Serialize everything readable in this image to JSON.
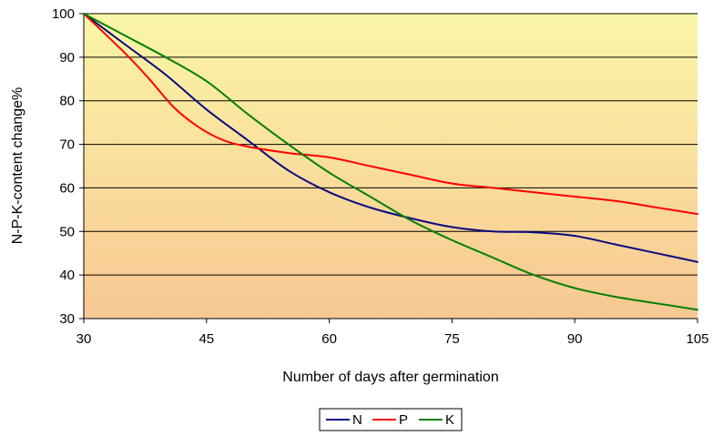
{
  "chart_data": {
    "type": "line",
    "title": "",
    "xlabel": "Number of days after germination",
    "ylabel": "N-P-K-content change%",
    "xlim": [
      30,
      105
    ],
    "ylim": [
      30,
      100
    ],
    "xticks": [
      30,
      45,
      60,
      75,
      90,
      105
    ],
    "yticks": [
      30,
      40,
      50,
      60,
      70,
      80,
      90,
      100
    ],
    "grid": "horizontal",
    "legend_position": "bottom-center",
    "background": {
      "top": "#fbf6a6",
      "bottom": "#f7c793"
    },
    "series": [
      {
        "name": "N",
        "color": "#0a0a80",
        "x": [
          30,
          35,
          40,
          45,
          50,
          55,
          60,
          65,
          70,
          75,
          80,
          85,
          90,
          95,
          100,
          105
        ],
        "y": [
          100,
          93,
          86,
          78,
          71,
          64,
          59,
          55.5,
          53,
          51,
          50,
          49.8,
          49,
          47,
          45,
          43
        ]
      },
      {
        "name": "P",
        "color": "#ff0000",
        "x": [
          30,
          35,
          38,
          41,
          44,
          47,
          50,
          55,
          60,
          65,
          70,
          75,
          80,
          85,
          90,
          95,
          100,
          105
        ],
        "y": [
          100,
          91,
          85,
          78.5,
          74,
          71,
          69.5,
          68,
          67,
          65,
          63,
          61,
          60,
          59,
          58,
          57,
          55.5,
          54
        ]
      },
      {
        "name": "K",
        "color": "#008000",
        "x": [
          30,
          35,
          40,
          45,
          50,
          55,
          60,
          65,
          70,
          75,
          80,
          85,
          90,
          95,
          100,
          105
        ],
        "y": [
          100,
          95,
          90,
          84.5,
          77,
          70,
          63.5,
          58,
          52.5,
          48,
          44,
          40,
          37,
          35,
          33.5,
          32
        ]
      }
    ]
  }
}
